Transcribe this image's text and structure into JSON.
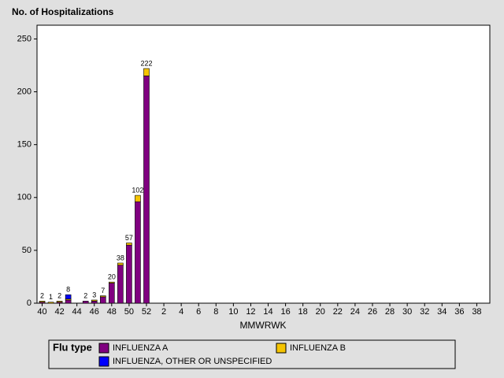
{
  "chart_data": {
    "type": "stacked_bar",
    "y_axis_title": "No. of Hospitalizations",
    "x_axis_title": "MMWRWK",
    "categories": [
      "40",
      null,
      "42",
      null,
      "44",
      null,
      "46",
      null,
      "48",
      null,
      "50",
      null,
      "52",
      null,
      "2",
      null,
      "4",
      null,
      "6",
      null,
      "8",
      null,
      "10",
      null,
      "12",
      null,
      "14",
      null,
      "16",
      null,
      "18",
      null,
      "20",
      null,
      "22",
      null,
      "24",
      null,
      "26",
      null,
      "28",
      null,
      "30",
      null,
      "32",
      null,
      "34",
      null,
      "36",
      null,
      "38",
      null
    ],
    "series": [
      {
        "name": "INFLUENZA A",
        "color": "#800080",
        "values": [
          1,
          0,
          1,
          3,
          0,
          2,
          2,
          6,
          19,
          36,
          55,
          96,
          215,
          null,
          null,
          null,
          null,
          null,
          null,
          null,
          null,
          null,
          null,
          null,
          null,
          null,
          null,
          null,
          null,
          null,
          null,
          null,
          null,
          null,
          null,
          null,
          null,
          null,
          null,
          null,
          null,
          null,
          null,
          null,
          null,
          null,
          null,
          null,
          null,
          null,
          null,
          null
        ]
      },
      {
        "name": "INFLUENZA B",
        "color": "#f5c400",
        "values": [
          1,
          1,
          1,
          1,
          0,
          0,
          1,
          1,
          1,
          2,
          2,
          6,
          7,
          null,
          null,
          null,
          null,
          null,
          null,
          null,
          null,
          null,
          null,
          null,
          null,
          null,
          null,
          null,
          null,
          null,
          null,
          null,
          null,
          null,
          null,
          null,
          null,
          null,
          null,
          null,
          null,
          null,
          null,
          null,
          null,
          null,
          null,
          null,
          null,
          null,
          null,
          null
        ]
      },
      {
        "name": "INFLUENZA, OTHER OR UNSPECIFIED",
        "color": "#0000ff",
        "values": [
          0,
          0,
          0,
          4,
          0,
          0,
          0,
          0,
          0,
          0,
          0,
          0,
          0,
          null,
          null,
          null,
          null,
          null,
          null,
          null,
          null,
          null,
          null,
          null,
          null,
          null,
          null,
          null,
          null,
          null,
          null,
          null,
          null,
          null,
          null,
          null,
          null,
          null,
          null,
          null,
          null,
          null,
          null,
          null,
          null,
          null,
          null,
          null,
          null,
          null,
          null,
          null
        ]
      }
    ],
    "totals": [
      2,
      1,
      2,
      8,
      null,
      2,
      3,
      7,
      20,
      38,
      57,
      102,
      222,
      null,
      null,
      null,
      null,
      null,
      null,
      null,
      null,
      null,
      null,
      null,
      null,
      null,
      null,
      null,
      null,
      null,
      null,
      null,
      null,
      null,
      null,
      null,
      null,
      null,
      null,
      null,
      null,
      null,
      null,
      null,
      null,
      null,
      null,
      null,
      null,
      null,
      null,
      null
    ],
    "ylim": [
      0,
      263
    ],
    "yticks": [
      0,
      50,
      100,
      150,
      200,
      250
    ],
    "legend_title": "Flu type",
    "legend_position": "bottom"
  }
}
